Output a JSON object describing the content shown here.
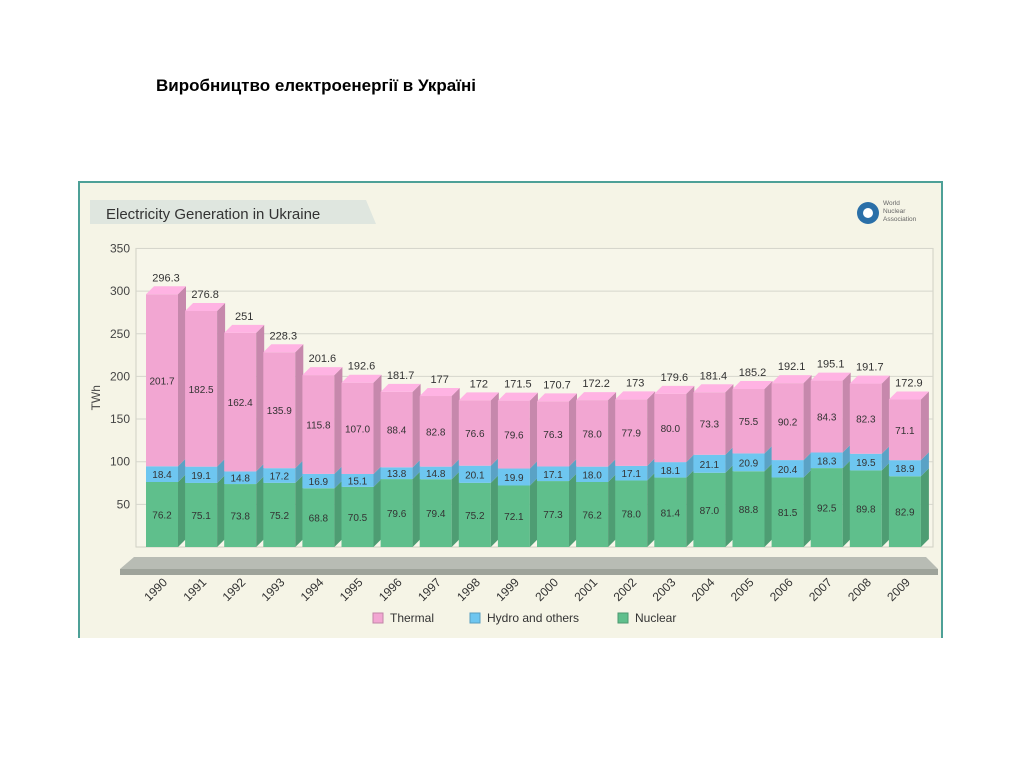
{
  "page": {
    "title": "Виробництво  електроенергії в Україні"
  },
  "chart_data": {
    "type": "bar",
    "stacked": true,
    "title": "Electricity Generation in Ukraine",
    "ylabel": "TWh",
    "xlabel": "",
    "ylim": [
      0,
      350
    ],
    "yticks": [
      50,
      100,
      150,
      200,
      250,
      300,
      350
    ],
    "grid": true,
    "legend_position": "bottom",
    "logo_text": "World Nuclear Association",
    "categories": [
      "1990",
      "1991",
      "1992",
      "1993",
      "1994",
      "1995",
      "1996",
      "1997",
      "1998",
      "1999",
      "2000",
      "2001",
      "2002",
      "2003",
      "2004",
      "2005",
      "2006",
      "2007",
      "2008",
      "2009"
    ],
    "totals": [
      "296.3",
      "276.8",
      "251",
      "228.3",
      "201.6",
      "192.6",
      "181.7",
      "177",
      "172",
      "171.5",
      "170.7",
      "172.2",
      "173",
      "179.6",
      "181.4",
      "185.2",
      "192.1",
      "195.1",
      "191.7",
      "172.9"
    ],
    "series": [
      {
        "name": "Nuclear",
        "color": "#5fbf8c",
        "values": [
          76.2,
          75.1,
          73.8,
          75.2,
          68.8,
          70.5,
          79.6,
          79.4,
          75.2,
          72.1,
          77.3,
          76.2,
          78.0,
          81.4,
          87.0,
          88.8,
          81.5,
          92.5,
          89.8,
          82.9
        ],
        "labels": [
          "76.2",
          "75.1",
          "73.8",
          "75.2",
          "68.8",
          "70.5",
          "79.6",
          "79.4",
          "75.2",
          "72.1",
          "77.3",
          "76.2",
          "78.0",
          "81.4",
          "87.0",
          "88.8",
          "81.5",
          "92.5",
          "89.8",
          "82.9"
        ]
      },
      {
        "name": "Hydro and others",
        "color": "#6ec6f0",
        "values": [
          18.4,
          19.1,
          14.8,
          17.2,
          16.9,
          15.1,
          13.8,
          14.8,
          20.1,
          19.9,
          17.1,
          18.0,
          17.1,
          18.1,
          21.1,
          20.9,
          20.4,
          18.3,
          19.5,
          18.9
        ],
        "labels": [
          "18.4",
          "19.1",
          "14.8",
          "17.2",
          "16.9",
          "15.1",
          "13.8",
          "14.8",
          "20.1",
          "19.9",
          "17.1",
          "18.0",
          "17.1",
          "18.1",
          "21.1",
          "20.9",
          "20.4",
          "18.3",
          "19.5",
          "18.9"
        ]
      },
      {
        "name": "Thermal",
        "color": "#f2a6d2",
        "values": [
          201.7,
          182.5,
          162.4,
          135.9,
          115.8,
          107.0,
          88.4,
          82.8,
          76.6,
          79.6,
          76.3,
          78.0,
          77.9,
          80.0,
          73.3,
          75.5,
          90.2,
          84.3,
          82.3,
          71.1
        ],
        "labels": [
          "201.7",
          "182.5",
          "162.4",
          "135.9",
          "115.8",
          "107.0",
          "88.4",
          "82.8",
          "76.6",
          "79.6",
          "76.3",
          "78.0",
          "77.9",
          "80.0",
          "73.3",
          "75.5",
          "90.2",
          "84.3",
          "82.3",
          "71.1"
        ]
      }
    ],
    "legend_order": [
      "Thermal",
      "Hydro and others",
      "Nuclear"
    ]
  }
}
